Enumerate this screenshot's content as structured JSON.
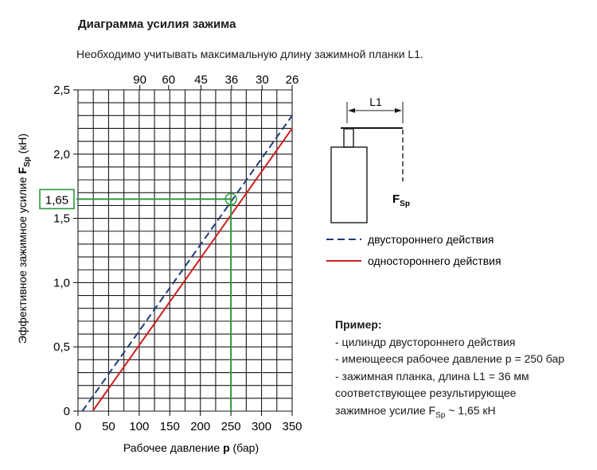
{
  "title": "Диаграмма усилия зажима",
  "subtitle": "Необходимо учитывать максимальную длину зажимной планки L1.",
  "chart_data": {
    "type": "line",
    "xlabel_prefix": "Рабочее давление ",
    "xlabel_var": "p",
    "xlabel_suffix": " (бар)",
    "ylabel_prefix": "Эффективное зажимное усилие ",
    "ylabel_var": "F",
    "ylabel_sub": "Sp",
    "ylabel_suffix": " (кН)",
    "xlim": [
      0,
      350
    ],
    "ylim": [
      0,
      2.5
    ],
    "x_ticks": [
      0,
      50,
      100,
      150,
      200,
      250,
      300,
      350
    ],
    "x_tick_labels": [
      "0",
      "50",
      "100",
      "150",
      "200",
      "250",
      "300",
      "350"
    ],
    "y_ticks": [
      0,
      0.5,
      1.0,
      1.5,
      2.0,
      2.5
    ],
    "y_tick_labels": [
      "0",
      "0,5",
      "1,0",
      "1,5",
      "2,0",
      "2,5"
    ],
    "top_axis_ticks": [
      {
        "x": 101,
        "label": "90"
      },
      {
        "x": 148,
        "label": "60"
      },
      {
        "x": 201,
        "label": "45"
      },
      {
        "x": 251,
        "label": "36"
      },
      {
        "x": 301,
        "label": "30"
      },
      {
        "x": 350,
        "label": "26"
      }
    ],
    "grid": true,
    "series": [
      {
        "name": "двустороннего действия",
        "style": "dashed",
        "color": "#1f3c7a",
        "points": [
          [
            7,
            0
          ],
          [
            350,
            2.3
          ]
        ]
      },
      {
        "name": "одностороннего действия",
        "style": "solid",
        "color": "#cc1f1f",
        "points": [
          [
            24,
            0
          ],
          [
            350,
            2.2
          ]
        ]
      }
    ],
    "annotation": {
      "x": 250,
      "y": 1.65,
      "label": "1,65",
      "color": "#2a9a3a"
    }
  },
  "legend": {
    "double_label": "двустороннего действия",
    "single_label": "одностороннего действия",
    "double_color": "#1f3c7a",
    "single_color": "#cc1f1f"
  },
  "schematic": {
    "length_label": "L1",
    "force_var": "F",
    "force_sub": "Sp"
  },
  "example": {
    "header": "Пример:",
    "line1": "- цилиндр двустороннего действия",
    "line2": "- имеющееся рабочее давление p = 250 бар",
    "line3": "- зажимная планка, длина L1 = 36 мм",
    "line4": "соответствующее результирующее",
    "line5_prefix": "зажимное усилие F",
    "line5_sub": "Sp",
    "line5_suffix": " ~ 1,65 кН"
  }
}
